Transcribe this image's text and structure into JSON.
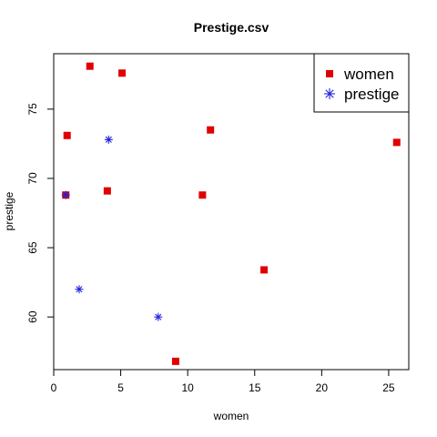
{
  "chart_data": {
    "type": "scatter",
    "title": "Prestige.csv",
    "xlabel": "women",
    "ylabel": "prestige",
    "xlim": [
      0,
      26.5
    ],
    "ylim": [
      56.2,
      79.0
    ],
    "xticks": [
      0,
      5,
      10,
      15,
      20,
      25
    ],
    "yticks": [
      60,
      65,
      70,
      75
    ],
    "grid": false,
    "legend_position": "top-right",
    "series": [
      {
        "name": "women",
        "marker": "square",
        "color": "#e00000",
        "points": [
          {
            "x": 2.7,
            "y": 78.1
          },
          {
            "x": 5.1,
            "y": 77.6
          },
          {
            "x": 1.0,
            "y": 73.1
          },
          {
            "x": 11.7,
            "y": 73.5
          },
          {
            "x": 25.6,
            "y": 72.6
          },
          {
            "x": 0.9,
            "y": 68.8
          },
          {
            "x": 4.0,
            "y": 69.1
          },
          {
            "x": 11.1,
            "y": 68.8
          },
          {
            "x": 15.7,
            "y": 63.4
          },
          {
            "x": 9.1,
            "y": 56.8
          }
        ]
      },
      {
        "name": "prestige",
        "marker": "asterisk",
        "color": "#2222dd",
        "points": [
          {
            "x": 4.1,
            "y": 72.8
          },
          {
            "x": 0.9,
            "y": 68.8
          },
          {
            "x": 1.9,
            "y": 62.0
          },
          {
            "x": 7.8,
            "y": 60.0
          }
        ]
      }
    ]
  }
}
